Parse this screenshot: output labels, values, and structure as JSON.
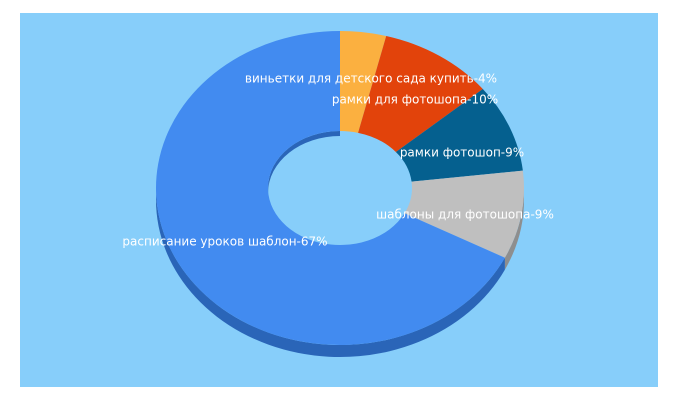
{
  "chart_data": {
    "type": "pie",
    "variant": "3d-donut",
    "background": "#87cefa",
    "slices": [
      {
        "label": "виньетки для детского сада купить",
        "value": 4,
        "text": "виньетки для детского сада купить-4%",
        "color": "#fbb040",
        "side": "#c08530"
      },
      {
        "label": "рамки для фотошопа",
        "value": 10,
        "text": "рамки для фотошопа-10%",
        "color": "#e2430b",
        "side": "#a83008"
      },
      {
        "label": "рамки фотошоп",
        "value": 9,
        "text": "рамки фотошоп-9%",
        "color": "#05608f",
        "side": "#03466a"
      },
      {
        "label": "шаблоны для фотошопа",
        "value": 9,
        "text": "шаблоны для фотошопа-9%",
        "color": "#bfbfbf",
        "side": "#8e8e8e"
      },
      {
        "label": "расписание уроков шаблон",
        "value": 67,
        "text": "расписание уроков шаблон-67%",
        "color": "#428bf0",
        "side": "#2a65b8"
      }
    ]
  }
}
